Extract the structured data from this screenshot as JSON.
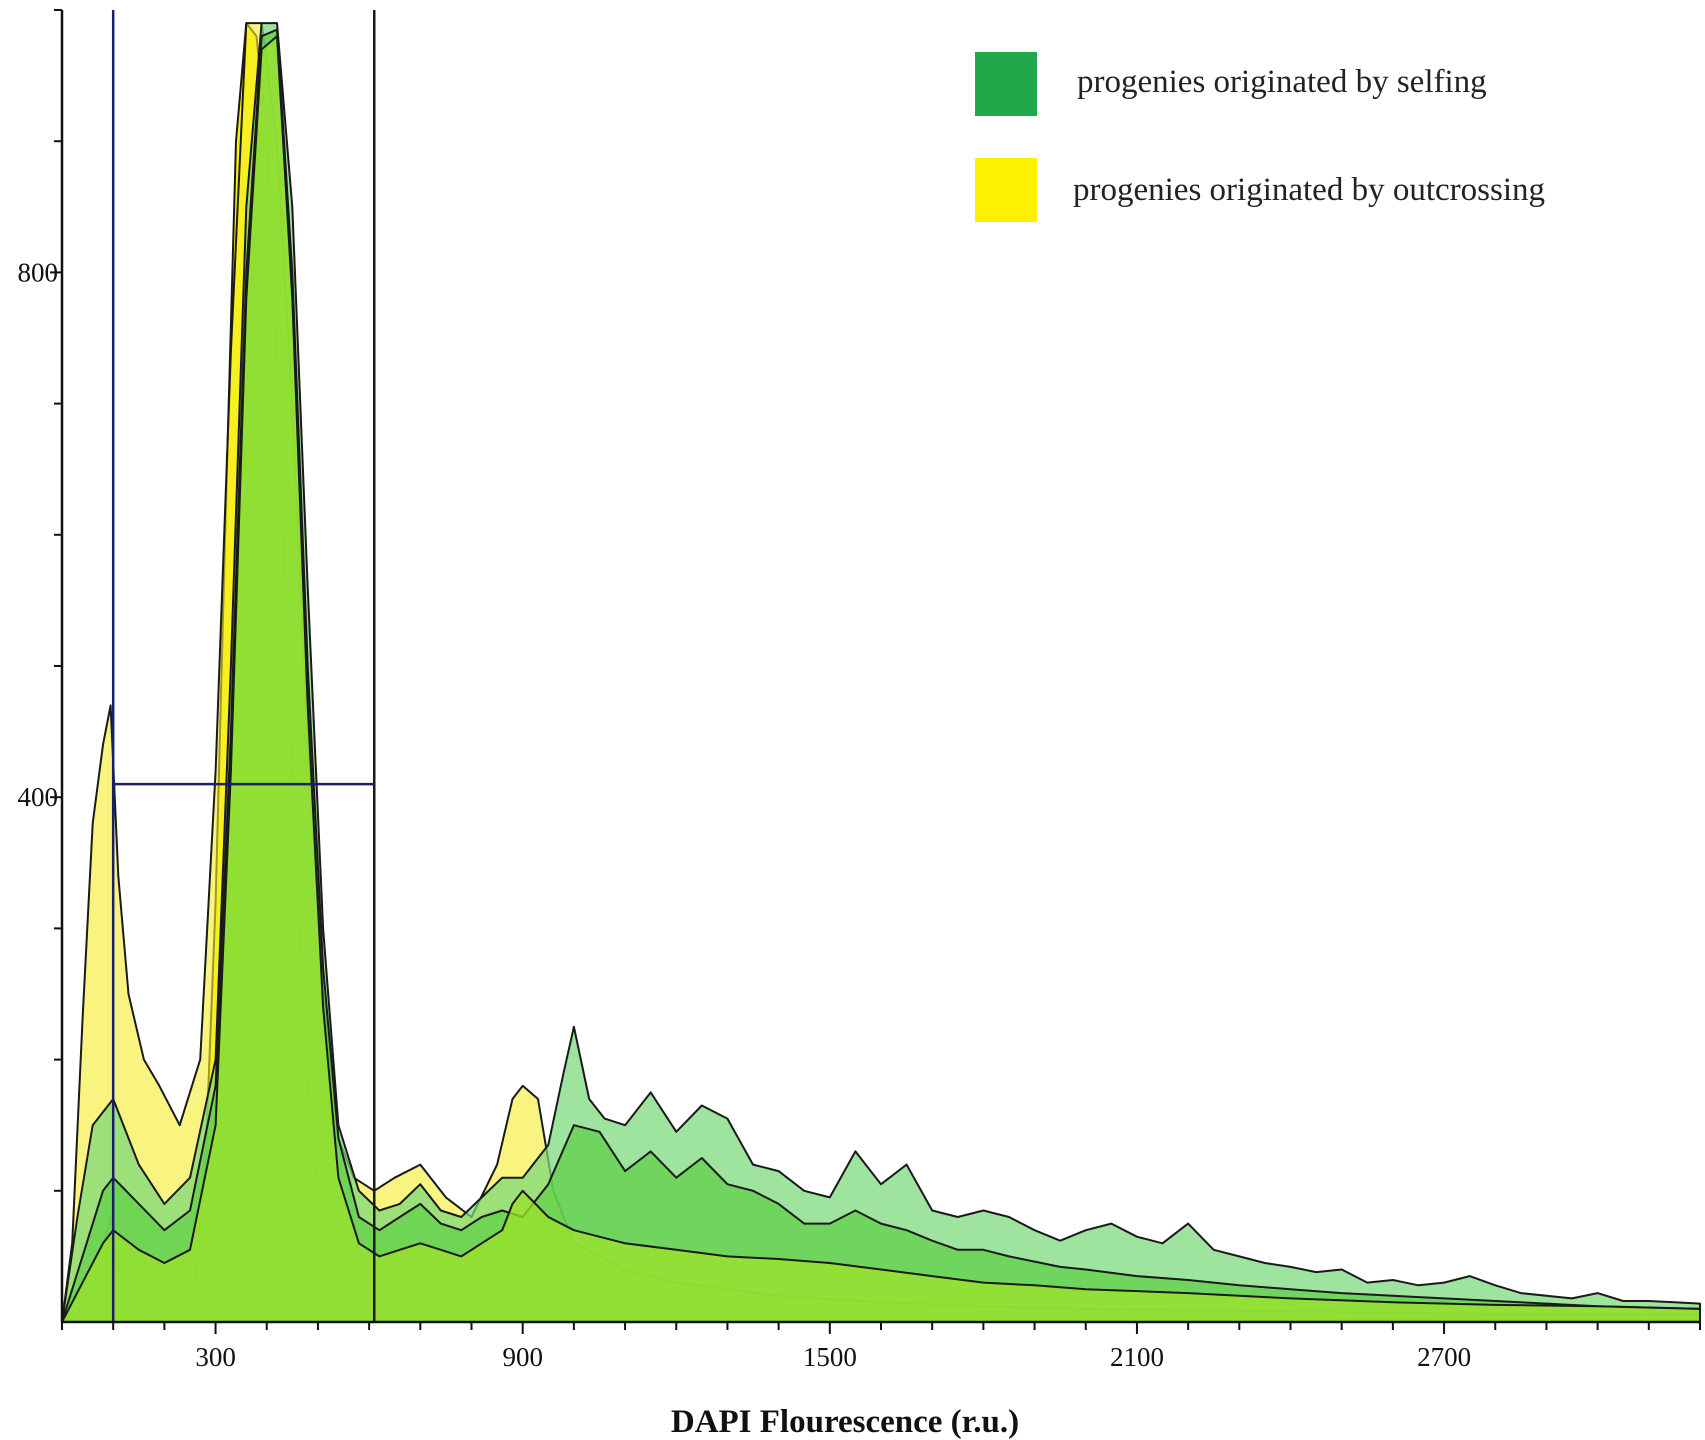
{
  "chart_data": {
    "type": "area",
    "title": "",
    "xlabel": "DAPI Flourescence (r.u.)",
    "ylabel": "",
    "xlim": [
      0,
      3200
    ],
    "ylim": [
      0,
      1000
    ],
    "x_ticks": [
      300,
      900,
      1500,
      2100,
      2700
    ],
    "y_ticks": [
      400,
      800
    ],
    "grid": false,
    "legend_position": "top-right",
    "legend": [
      {
        "label": "progenies originated by selfing",
        "color": "#21a84a"
      },
      {
        "label": "progenies originated by outcrossing",
        "color": "#fbf100"
      }
    ],
    "gate": {
      "x_start": 100,
      "x_end": 610,
      "y": 410
    },
    "series": [
      {
        "group": "outcrossing",
        "color": "#fbf300",
        "opacity": 0.95,
        "x": [
          10,
          30,
          60,
          80,
          95,
          110,
          130,
          150,
          170,
          200,
          230,
          260,
          280,
          300,
          320,
          340,
          360,
          380,
          400,
          420,
          440,
          460,
          480,
          500,
          520,
          540,
          560,
          600,
          650,
          700,
          750,
          800,
          850,
          880,
          900,
          930,
          950,
          1000,
          1100,
          1200,
          1300,
          1400,
          1500,
          1600,
          1700,
          1800,
          1900,
          2000,
          2200,
          2400,
          2600,
          2800,
          3000,
          3200
        ],
        "y": [
          0,
          5,
          25,
          60,
          80,
          40,
          15,
          8,
          5,
          5,
          10,
          30,
          120,
          320,
          620,
          900,
          990,
          980,
          900,
          730,
          520,
          330,
          180,
          100,
          70,
          55,
          45,
          38,
          35,
          40,
          35,
          38,
          45,
          55,
          65,
          50,
          40,
          32,
          26,
          20,
          15,
          12,
          10,
          8,
          6,
          5,
          4,
          4,
          3,
          3,
          2,
          2,
          2,
          2
        ]
      },
      {
        "group": "outcrossing",
        "color": "#f5ec2a",
        "opacity": 0.6,
        "x": [
          0,
          20,
          40,
          60,
          80,
          95,
          110,
          130,
          160,
          190,
          230,
          270,
          300,
          330,
          360,
          390,
          420,
          450,
          480,
          510,
          540,
          570,
          610,
          650,
          700,
          750,
          800,
          850,
          880,
          900,
          930,
          960,
          1000,
          1100,
          1200,
          1400,
          1600,
          1800,
          2000,
          2400,
          2800,
          3200
        ],
        "y": [
          0,
          60,
          230,
          380,
          440,
          470,
          340,
          250,
          200,
          180,
          150,
          200,
          420,
          740,
          990,
          990,
          900,
          700,
          440,
          250,
          140,
          110,
          100,
          110,
          120,
          95,
          80,
          120,
          170,
          180,
          170,
          100,
          60,
          40,
          30,
          20,
          15,
          12,
          10,
          8,
          6,
          5
        ]
      },
      {
        "group": "selfing",
        "color": "#79d879",
        "opacity": 0.72,
        "x": [
          0,
          30,
          60,
          100,
          150,
          200,
          250,
          300,
          330,
          360,
          390,
          420,
          450,
          480,
          510,
          540,
          580,
          620,
          660,
          700,
          740,
          780,
          820,
          860,
          900,
          950,
          980,
          1000,
          1030,
          1060,
          1100,
          1150,
          1200,
          1250,
          1300,
          1350,
          1400,
          1450,
          1500,
          1550,
          1600,
          1650,
          1700,
          1750,
          1800,
          1850,
          1900,
          1950,
          2000,
          2050,
          2100,
          2150,
          2200,
          2250,
          2300,
          2350,
          2400,
          2450,
          2500,
          2550,
          2600,
          2650,
          2700,
          2750,
          2800,
          2850,
          2900,
          2950,
          3000,
          3050,
          3100,
          3150,
          3200
        ],
        "y": [
          0,
          80,
          150,
          170,
          120,
          90,
          110,
          200,
          500,
          850,
          990,
          990,
          850,
          560,
          300,
          150,
          100,
          85,
          90,
          105,
          85,
          80,
          95,
          110,
          110,
          135,
          190,
          225,
          170,
          155,
          150,
          175,
          145,
          165,
          155,
          120,
          115,
          100,
          95,
          130,
          105,
          120,
          85,
          80,
          85,
          80,
          70,
          62,
          70,
          75,
          65,
          60,
          75,
          55,
          50,
          45,
          42,
          38,
          40,
          30,
          32,
          28,
          30,
          35,
          28,
          22,
          20,
          18,
          22,
          16,
          16,
          15,
          14
        ]
      },
      {
        "group": "selfing",
        "color": "#5ccf45",
        "opacity": 0.7,
        "x": [
          0,
          40,
          80,
          100,
          150,
          200,
          250,
          300,
          330,
          360,
          390,
          420,
          450,
          480,
          510,
          540,
          580,
          620,
          660,
          700,
          740,
          780,
          820,
          860,
          900,
          950,
          1000,
          1050,
          1100,
          1150,
          1200,
          1250,
          1300,
          1350,
          1400,
          1450,
          1500,
          1550,
          1600,
          1650,
          1700,
          1750,
          1800,
          1850,
          1900,
          1950,
          2000,
          2100,
          2200,
          2300,
          2400,
          2500,
          2600,
          2700,
          2800,
          2900,
          3000,
          3100,
          3200
        ],
        "y": [
          0,
          50,
          100,
          110,
          90,
          70,
          85,
          180,
          450,
          800,
          980,
          985,
          800,
          500,
          270,
          140,
          80,
          70,
          80,
          90,
          75,
          70,
          80,
          85,
          80,
          105,
          150,
          145,
          115,
          130,
          110,
          125,
          105,
          100,
          90,
          75,
          75,
          85,
          75,
          70,
          62,
          55,
          55,
          50,
          46,
          42,
          40,
          35,
          32,
          28,
          25,
          22,
          20,
          18,
          16,
          14,
          12,
          11,
          10
        ]
      },
      {
        "group": "selfing",
        "color": "#9be22c",
        "opacity": 0.78,
        "x": [
          0,
          40,
          80,
          100,
          150,
          200,
          250,
          300,
          330,
          360,
          390,
          420,
          450,
          480,
          510,
          540,
          580,
          620,
          660,
          700,
          740,
          780,
          820,
          860,
          880,
          900,
          950,
          1000,
          1100,
          1200,
          1300,
          1400,
          1500,
          1600,
          1700,
          1800,
          1900,
          2000,
          2200,
          2400,
          2600,
          2800,
          3000,
          3200
        ],
        "y": [
          0,
          30,
          60,
          70,
          55,
          45,
          55,
          150,
          420,
          780,
          970,
          980,
          780,
          470,
          240,
          110,
          60,
          50,
          55,
          60,
          55,
          50,
          60,
          70,
          90,
          100,
          80,
          70,
          60,
          55,
          50,
          48,
          45,
          40,
          35,
          30,
          28,
          25,
          22,
          18,
          15,
          13,
          12,
          10
        ]
      }
    ]
  }
}
